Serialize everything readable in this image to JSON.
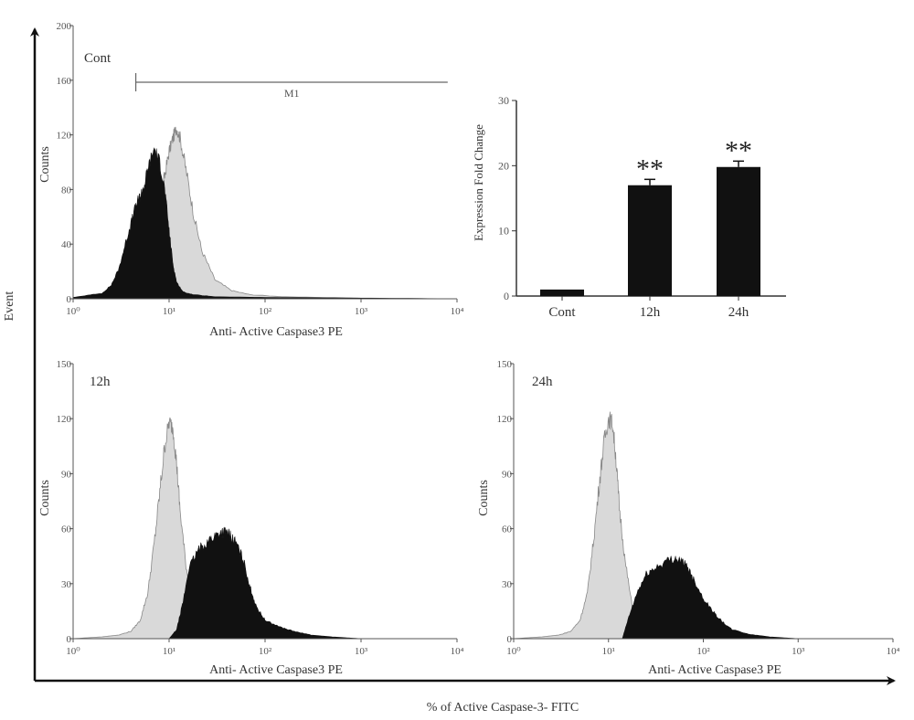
{
  "figure": {
    "outer_y_label": "Event",
    "outer_x_label": "% of  Active Caspase-3- FITC"
  },
  "chart_data": [
    {
      "type": "area",
      "panel": "Cont",
      "xlabel": "Anti- Active Caspase3 PE",
      "ylabel": "Counts",
      "x_scale": "log",
      "xlim": [
        1,
        10000
      ],
      "ylim": [
        0,
        200
      ],
      "x_ticks": [
        "10⁰",
        "10¹",
        "10²",
        "10³",
        "10⁴"
      ],
      "y_ticks": [
        "0",
        "40",
        "80",
        "120",
        "160",
        "200"
      ],
      "marker": {
        "label": "M1",
        "x_from": 4.5,
        "x_to": 8000
      },
      "series": [
        {
          "fill": "#d9d9d9",
          "x": [
            1,
            2,
            3,
            4,
            5,
            6,
            7,
            8,
            9,
            10,
            11,
            12,
            13,
            15,
            18,
            22,
            30,
            45,
            70,
            150,
            400,
            1000,
            10000
          ],
          "y": [
            1,
            2,
            5,
            12,
            22,
            38,
            55,
            72,
            90,
            108,
            118,
            125,
            118,
            95,
            62,
            35,
            14,
            6,
            3,
            1.5,
            1,
            0.5,
            0
          ]
        },
        {
          "fill": "#111111",
          "x": [
            1,
            2,
            2.5,
            3,
            3.5,
            4,
            4.5,
            5,
            5.5,
            6,
            7,
            8,
            9,
            10,
            11,
            12,
            14,
            18,
            30,
            100,
            1000,
            10000
          ],
          "y": [
            1,
            4,
            10,
            22,
            40,
            55,
            68,
            75,
            82,
            95,
            110,
            100,
            80,
            50,
            25,
            12,
            5,
            3,
            1.5,
            1,
            0.5,
            0
          ]
        }
      ]
    },
    {
      "type": "bar",
      "categories": [
        "Cont",
        "12h",
        "24h"
      ],
      "values": [
        1,
        17,
        19.8
      ],
      "errors": [
        0.1,
        0.9,
        0.9
      ],
      "annotations": [
        "",
        "**",
        "**"
      ],
      "ylabel": "Expression Fold Change",
      "ylim": [
        0,
        30
      ],
      "y_ticks": [
        "0",
        "10",
        "20",
        "30"
      ],
      "bar_color": "#111111"
    },
    {
      "type": "area",
      "panel": "12h",
      "xlabel": "Anti- Active Caspase3 PE",
      "ylabel": "Counts",
      "x_scale": "log",
      "xlim": [
        1,
        10000
      ],
      "ylim": [
        0,
        150
      ],
      "x_ticks": [
        "10⁰",
        "10¹",
        "10²",
        "10³",
        "10⁴"
      ],
      "y_ticks": [
        "0",
        "30",
        "60",
        "90",
        "120",
        "150"
      ],
      "series": [
        {
          "fill": "#d9d9d9",
          "x": [
            1,
            2,
            3,
            4,
            5,
            6,
            7,
            8,
            9,
            10,
            11,
            12,
            13,
            15,
            18,
            22,
            30,
            60,
            200,
            10000
          ],
          "y": [
            0,
            1,
            2,
            4,
            10,
            25,
            52,
            80,
            105,
            118,
            115,
            95,
            70,
            40,
            15,
            5,
            2,
            0.5,
            0,
            0
          ]
        },
        {
          "fill": "#111111",
          "x": [
            1,
            10,
            12,
            14,
            16,
            20,
            25,
            30,
            35,
            40,
            45,
            50,
            60,
            70,
            80,
            100,
            150,
            200,
            300,
            500,
            1000,
            10000
          ],
          "y": [
            0,
            0,
            5,
            20,
            38,
            48,
            53,
            56,
            58,
            58,
            55,
            52,
            42,
            28,
            18,
            10,
            6,
            4,
            2,
            1,
            0,
            0
          ]
        }
      ]
    },
    {
      "type": "area",
      "panel": "24h",
      "xlabel": "Anti- Active Caspase3 PE",
      "ylabel": "Counts",
      "x_scale": "log",
      "xlim": [
        1,
        10000
      ],
      "ylim": [
        0,
        150
      ],
      "x_ticks": [
        "10⁰",
        "10¹",
        "10²",
        "10³",
        "10⁴"
      ],
      "y_ticks": [
        "0",
        "30",
        "60",
        "90",
        "120",
        "150"
      ],
      "series": [
        {
          "fill": "#d9d9d9",
          "x": [
            1,
            2,
            3,
            4,
            5,
            6,
            7,
            8,
            9,
            10,
            11,
            12,
            13,
            15,
            18,
            22,
            30,
            60,
            200,
            10000
          ],
          "y": [
            0,
            1,
            2,
            4,
            10,
            25,
            55,
            85,
            108,
            120,
            118,
            98,
            72,
            42,
            16,
            6,
            2,
            0.5,
            0,
            0
          ]
        },
        {
          "fill": "#111111",
          "x": [
            1,
            14,
            16,
            20,
            25,
            30,
            40,
            50,
            60,
            70,
            80,
            100,
            130,
            160,
            200,
            300,
            500,
            1000,
            10000
          ],
          "y": [
            0,
            0,
            10,
            25,
            35,
            38,
            42,
            44,
            42,
            38,
            32,
            22,
            14,
            9,
            5,
            2.5,
            1,
            0,
            0
          ]
        }
      ]
    }
  ]
}
